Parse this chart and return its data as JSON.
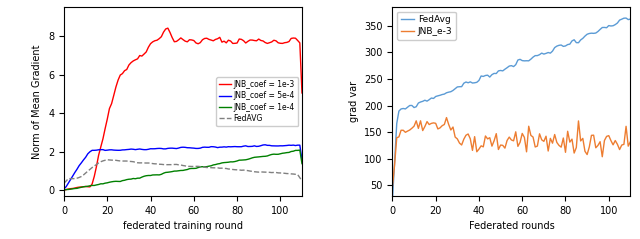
{
  "left": {
    "xlabel": "federated training round",
    "ylabel": "Norm of Mean Gradient",
    "xlim": [
      0,
      110
    ],
    "ylim": [
      -0.3,
      9.5
    ],
    "yticks": [
      0,
      2,
      4,
      6,
      8
    ],
    "xticks": [
      0,
      20,
      40,
      60,
      80,
      100
    ],
    "legend_labels": [
      "JNB_coef = 1e-3",
      "JNB_coef = 5e-4",
      "JNB_coef = 1e-4",
      "FedAVG"
    ],
    "colors": [
      "red",
      "blue",
      "green",
      "gray"
    ]
  },
  "right": {
    "xlabel": "Federated rounds",
    "ylabel": "grad var",
    "xlim": [
      0,
      110
    ],
    "ylim": [
      30,
      385
    ],
    "yticks": [
      50,
      100,
      150,
      200,
      250,
      300,
      350
    ],
    "xticks": [
      0,
      20,
      40,
      60,
      80,
      100
    ],
    "legend_labels": [
      "FedAvg",
      "JNB_e-3"
    ],
    "colors": [
      "#5b9bd5",
      "#ed7d31"
    ]
  }
}
